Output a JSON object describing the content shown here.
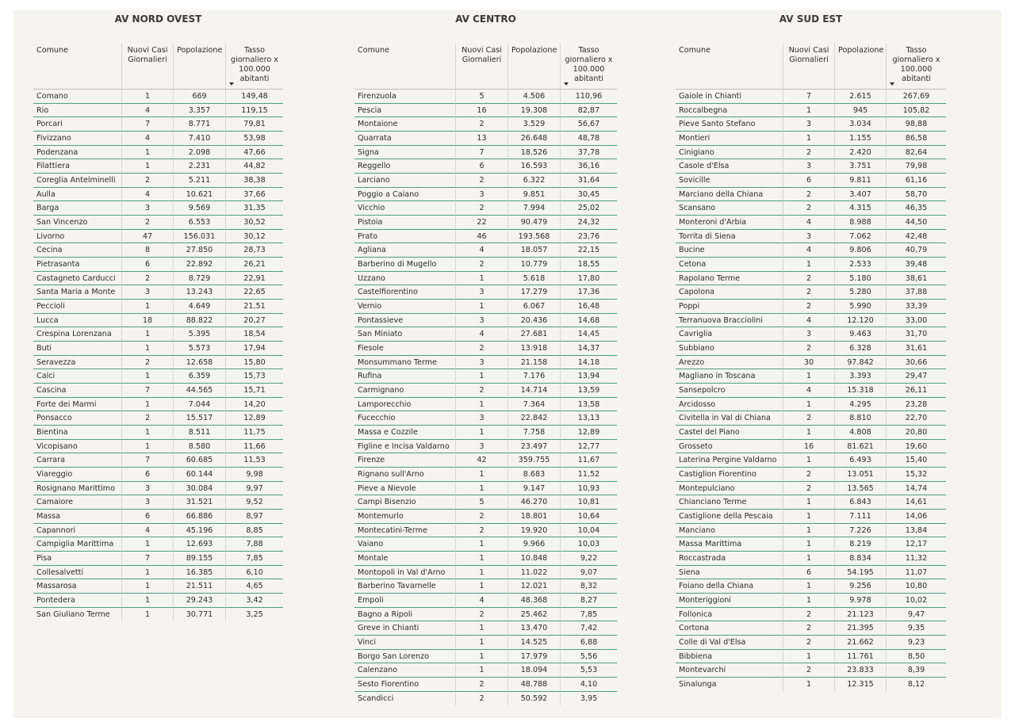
{
  "tables": [
    {
      "title": "AV NORD OVEST",
      "headers": [
        "Comune",
        "Nuovi Casi Giornalieri",
        "Popolazione",
        "Tasso giornaliero x 100.000 abitanti"
      ],
      "rows": [
        [
          "Comano",
          "1",
          "669",
          "149,48"
        ],
        [
          "Rio",
          "4",
          "3.357",
          "119,15"
        ],
        [
          "Porcari",
          "7",
          "8.771",
          "79,81"
        ],
        [
          "Fivizzano",
          "4",
          "7.410",
          "53,98"
        ],
        [
          "Podenzana",
          "1",
          "2.098",
          "47,66"
        ],
        [
          "Filattiera",
          "1",
          "2.231",
          "44,82"
        ],
        [
          "Coreglia Antelminelli",
          "2",
          "5.211",
          "38,38"
        ],
        [
          "Aulla",
          "4",
          "10.621",
          "37,66"
        ],
        [
          "Barga",
          "3",
          "9.569",
          "31,35"
        ],
        [
          "San Vincenzo",
          "2",
          "6.553",
          "30,52"
        ],
        [
          "Livorno",
          "47",
          "156.031",
          "30,12"
        ],
        [
          "Cecina",
          "8",
          "27.850",
          "28,73"
        ],
        [
          "Pietrasanta",
          "6",
          "22.892",
          "26,21"
        ],
        [
          "Castagneto Carducci",
          "2",
          "8.729",
          "22,91"
        ],
        [
          "Santa Maria a Monte",
          "3",
          "13.243",
          "22,65"
        ],
        [
          "Peccioli",
          "1",
          "4.649",
          "21,51"
        ],
        [
          "Lucca",
          "18",
          "88.822",
          "20,27"
        ],
        [
          "Crespina Lorenzana",
          "1",
          "5.395",
          "18,54"
        ],
        [
          "Buti",
          "1",
          "5.573",
          "17,94"
        ],
        [
          "Seravezza",
          "2",
          "12.658",
          "15,80"
        ],
        [
          "Calci",
          "1",
          "6.359",
          "15,73"
        ],
        [
          "Cascina",
          "7",
          "44.565",
          "15,71"
        ],
        [
          "Forte dei Marmi",
          "1",
          "7.044",
          "14,20"
        ],
        [
          "Ponsacco",
          "2",
          "15.517",
          "12,89"
        ],
        [
          "Bientina",
          "1",
          "8.511",
          "11,75"
        ],
        [
          "Vicopisano",
          "1",
          "8.580",
          "11,66"
        ],
        [
          "Carrara",
          "7",
          "60.685",
          "11,53"
        ],
        [
          "Viareggio",
          "6",
          "60.144",
          "9,98"
        ],
        [
          "Rosignano Marittimo",
          "3",
          "30.084",
          "9,97"
        ],
        [
          "Camaiore",
          "3",
          "31.521",
          "9,52"
        ],
        [
          "Massa",
          "6",
          "66.886",
          "8,97"
        ],
        [
          "Capannori",
          "4",
          "45.196",
          "8,85"
        ],
        [
          "Campiglia Marittima",
          "1",
          "12.693",
          "7,88"
        ],
        [
          "Pisa",
          "7",
          "89.155",
          "7,85"
        ],
        [
          "Collesalvetti",
          "1",
          "16.385",
          "6,10"
        ],
        [
          "Massarosa",
          "1",
          "21.511",
          "4,65"
        ],
        [
          "Pontedera",
          "1",
          "29.243",
          "3,42"
        ],
        [
          "San Giuliano Terme",
          "1",
          "30.771",
          "3,25"
        ]
      ]
    },
    {
      "title": "AV CENTRO",
      "headers": [
        "Comune",
        "Nuovi Casi Giornalieri",
        "Popolazione",
        "Tasso giornaliero x 100.000 abitanti"
      ],
      "rows": [
        [
          "Firenzuola",
          "5",
          "4.506",
          "110,96"
        ],
        [
          "Pescia",
          "16",
          "19.308",
          "82,87"
        ],
        [
          "Montaione",
          "2",
          "3.529",
          "56,67"
        ],
        [
          "Quarrata",
          "13",
          "26.648",
          "48,78"
        ],
        [
          "Signa",
          "7",
          "18.526",
          "37,78"
        ],
        [
          "Reggello",
          "6",
          "16.593",
          "36,16"
        ],
        [
          "Larciano",
          "2",
          "6.322",
          "31,64"
        ],
        [
          "Poggio a Caiano",
          "3",
          "9.851",
          "30,45"
        ],
        [
          "Vicchio",
          "2",
          "7.994",
          "25,02"
        ],
        [
          "Pistoia",
          "22",
          "90.479",
          "24,32"
        ],
        [
          "Prato",
          "46",
          "193.568",
          "23,76"
        ],
        [
          "Agliana",
          "4",
          "18.057",
          "22,15"
        ],
        [
          "Barberino di Mugello",
          "2",
          "10.779",
          "18,55"
        ],
        [
          "Uzzano",
          "1",
          "5.618",
          "17,80"
        ],
        [
          "Castelfiorentino",
          "3",
          "17.279",
          "17,36"
        ],
        [
          "Vernio",
          "1",
          "6.067",
          "16,48"
        ],
        [
          "Pontassieve",
          "3",
          "20.436",
          "14,68"
        ],
        [
          "San Miniato",
          "4",
          "27.681",
          "14,45"
        ],
        [
          "Fiesole",
          "2",
          "13.918",
          "14,37"
        ],
        [
          "Monsummano Terme",
          "3",
          "21.158",
          "14,18"
        ],
        [
          "Rufina",
          "1",
          "7.176",
          "13,94"
        ],
        [
          "Carmignano",
          "2",
          "14.714",
          "13,59"
        ],
        [
          "Lamporecchio",
          "1",
          "7.364",
          "13,58"
        ],
        [
          "Fucecchio",
          "3",
          "22.842",
          "13,13"
        ],
        [
          "Massa e Cozzile",
          "1",
          "7.758",
          "12,89"
        ],
        [
          "Figline e Incisa Valdarno",
          "3",
          "23.497",
          "12,77"
        ],
        [
          "Firenze",
          "42",
          "359.755",
          "11,67"
        ],
        [
          "Rignano sull'Arno",
          "1",
          "8.683",
          "11,52"
        ],
        [
          "Pieve a Nievole",
          "1",
          "9.147",
          "10,93"
        ],
        [
          "Campi Bisenzio",
          "5",
          "46.270",
          "10,81"
        ],
        [
          "Montemurlo",
          "2",
          "18.801",
          "10,64"
        ],
        [
          "Montecatini-Terme",
          "2",
          "19.920",
          "10,04"
        ],
        [
          "Vaiano",
          "1",
          "9.966",
          "10,03"
        ],
        [
          "Montale",
          "1",
          "10.848",
          "9,22"
        ],
        [
          "Montopoli in Val d'Arno",
          "1",
          "11.022",
          "9,07"
        ],
        [
          "Barberino Tavarnelle",
          "1",
          "12.021",
          "8,32"
        ],
        [
          "Empoli",
          "4",
          "48.368",
          "8,27"
        ],
        [
          "Bagno a Ripoli",
          "2",
          "25.462",
          "7,85"
        ],
        [
          "Greve in Chianti",
          "1",
          "13.470",
          "7,42"
        ],
        [
          "Vinci",
          "1",
          "14.525",
          "6,88"
        ],
        [
          "Borgo San Lorenzo",
          "1",
          "17.979",
          "5,56"
        ],
        [
          "Calenzano",
          "1",
          "18.094",
          "5,53"
        ],
        [
          "Sesto Fiorentino",
          "2",
          "48.788",
          "4,10"
        ],
        [
          "Scandicci",
          "2",
          "50.592",
          "3,95"
        ]
      ]
    },
    {
      "title": "AV SUD EST",
      "headers": [
        "Comune",
        "Nuovi Casi Giornalieri",
        "Popolazione",
        "Tasso giornaliero x 100.000 abitanti"
      ],
      "rows": [
        [
          "Gaiole in Chianti",
          "7",
          "2.615",
          "267,69"
        ],
        [
          "Roccalbegna",
          "1",
          "945",
          "105,82"
        ],
        [
          "Pieve Santo Stefano",
          "3",
          "3.034",
          "98,88"
        ],
        [
          "Montieri",
          "1",
          "1.155",
          "86,58"
        ],
        [
          "Cinigiano",
          "2",
          "2.420",
          "82,64"
        ],
        [
          "Casole d'Elsa",
          "3",
          "3.751",
          "79,98"
        ],
        [
          "Sovicille",
          "6",
          "9.811",
          "61,16"
        ],
        [
          "Marciano della Chiana",
          "2",
          "3.407",
          "58,70"
        ],
        [
          "Scansano",
          "2",
          "4.315",
          "46,35"
        ],
        [
          "Monteroni d'Arbia",
          "4",
          "8.988",
          "44,50"
        ],
        [
          "Torrita di Siena",
          "3",
          "7.062",
          "42,48"
        ],
        [
          "Bucine",
          "4",
          "9.806",
          "40,79"
        ],
        [
          "Cetona",
          "1",
          "2.533",
          "39,48"
        ],
        [
          "Rapolano Terme",
          "2",
          "5.180",
          "38,61"
        ],
        [
          "Capolona",
          "2",
          "5.280",
          "37,88"
        ],
        [
          "Poppi",
          "2",
          "5.990",
          "33,39"
        ],
        [
          "Terranuova Bracciolini",
          "4",
          "12.120",
          "33,00"
        ],
        [
          "Cavriglia",
          "3",
          "9.463",
          "31,70"
        ],
        [
          "Subbiano",
          "2",
          "6.328",
          "31,61"
        ],
        [
          "Arezzo",
          "30",
          "97.842",
          "30,66"
        ],
        [
          "Magliano in Toscana",
          "1",
          "3.393",
          "29,47"
        ],
        [
          "Sansepolcro",
          "4",
          "15.318",
          "26,11"
        ],
        [
          "Arcidosso",
          "1",
          "4.295",
          "23,28"
        ],
        [
          "Civitella in Val di Chiana",
          "2",
          "8.810",
          "22,70"
        ],
        [
          "Castel del Piano",
          "1",
          "4.808",
          "20,80"
        ],
        [
          "Grosseto",
          "16",
          "81.621",
          "19,60"
        ],
        [
          "Laterina Pergine Valdarno",
          "1",
          "6.493",
          "15,40"
        ],
        [
          "Castiglion Fiorentino",
          "2",
          "13.051",
          "15,32"
        ],
        [
          "Montepulciano",
          "2",
          "13.565",
          "14,74"
        ],
        [
          "Chianciano Terme",
          "1",
          "6.843",
          "14,61"
        ],
        [
          "Castiglione della Pescaia",
          "1",
          "7.111",
          "14,06"
        ],
        [
          "Manciano",
          "1",
          "7.226",
          "13,84"
        ],
        [
          "Massa Marittima",
          "1",
          "8.219",
          "12,17"
        ],
        [
          "Roccastrada",
          "1",
          "8.834",
          "11,32"
        ],
        [
          "Siena",
          "6",
          "54.195",
          "11,07"
        ],
        [
          "Foiano della Chiana",
          "1",
          "9.256",
          "10,80"
        ],
        [
          "Monteriggioni",
          "1",
          "9.978",
          "10,02"
        ],
        [
          "Follonica",
          "2",
          "21.123",
          "9,47"
        ],
        [
          "Cortona",
          "2",
          "21.395",
          "9,35"
        ],
        [
          "Colle di Val d'Elsa",
          "2",
          "21.662",
          "9,23"
        ],
        [
          "Bibbiena",
          "1",
          "11.761",
          "8,50"
        ],
        [
          "Montevarchi",
          "2",
          "23.833",
          "8,39"
        ],
        [
          "Sinalunga",
          "1",
          "12.315",
          "8,12"
        ]
      ]
    }
  ]
}
